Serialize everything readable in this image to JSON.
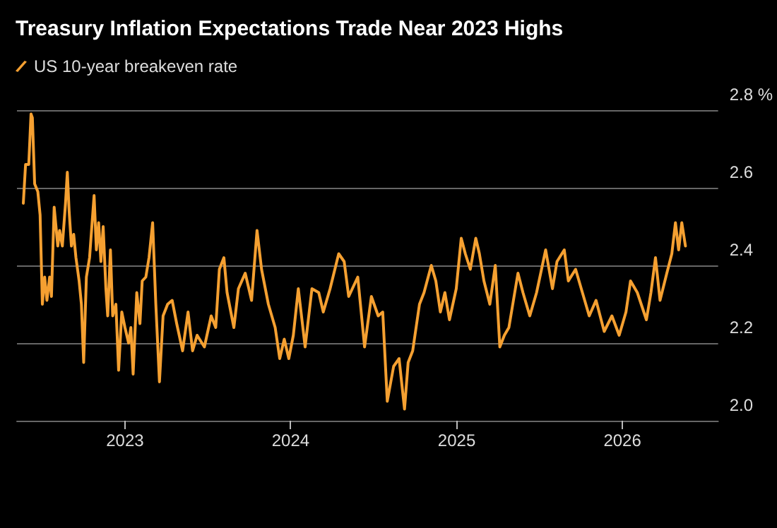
{
  "chart_data": {
    "type": "line",
    "title": "Treasury Inflation Expectations Trade Near 2023 Highs",
    "legend": "top left",
    "grid": "y",
    "line_style": "solid",
    "marker": "none",
    "xlim": [
      "2022-05-08",
      "2026-07-31"
    ],
    "xticks": [
      {
        "value": "2023-01-01",
        "label": "2023"
      },
      {
        "value": "2024-01-01",
        "label": "2024"
      },
      {
        "value": "2025-01-01",
        "label": "2025"
      },
      {
        "value": "2026-01-01",
        "label": "2026"
      }
    ],
    "ylim": [
      2.0,
      2.8
    ],
    "yticks": [
      {
        "value": 2.0,
        "label": "2.0"
      },
      2.2,
      2.4,
      2.6,
      {
        "value": 2.8,
        "label": "2.8 %"
      }
    ],
    "series": [
      {
        "name": "US 10-year breakeven rate",
        "color": "#f5a031",
        "x": [
          "2022-05-22",
          "2022-05-27",
          "2022-06-03",
          "2022-06-08",
          "2022-06-11",
          "2022-06-16",
          "2022-06-23",
          "2022-06-28",
          "2022-07-03",
          "2022-07-08",
          "2022-07-13",
          "2022-07-19",
          "2022-07-23",
          "2022-07-29",
          "2022-08-06",
          "2022-08-10",
          "2022-08-16",
          "2022-08-23",
          "2022-08-27",
          "2022-08-31",
          "2022-09-05",
          "2022-09-10",
          "2022-09-15",
          "2022-09-22",
          "2022-09-27",
          "2022-10-02",
          "2022-10-08",
          "2022-10-15",
          "2022-10-25",
          "2022-10-30",
          "2022-11-04",
          "2022-11-09",
          "2022-11-14",
          "2022-11-20",
          "2022-11-24",
          "2022-11-30",
          "2022-12-05",
          "2022-12-12",
          "2022-12-18",
          "2022-12-25",
          "2023-01-01",
          "2023-01-09",
          "2023-01-14",
          "2023-01-19",
          "2023-01-27",
          "2023-02-03",
          "2023-02-08",
          "2023-02-16",
          "2023-02-23",
          "2023-03-03",
          "2023-03-10",
          "2023-03-18",
          "2023-03-26",
          "2023-04-05",
          "2023-04-15",
          "2023-04-25",
          "2023-05-08",
          "2023-05-20",
          "2023-05-30",
          "2023-06-09",
          "2023-06-25",
          "2023-07-10",
          "2023-07-20",
          "2023-07-28",
          "2023-08-07",
          "2023-08-14",
          "2023-08-29",
          "2023-09-08",
          "2023-09-23",
          "2023-10-07",
          "2023-10-19",
          "2023-10-29",
          "2023-11-13",
          "2023-11-28",
          "2023-12-08",
          "2023-12-18",
          "2023-12-28",
          "2024-01-07",
          "2024-01-18",
          "2024-02-02",
          "2024-02-17",
          "2024-03-03",
          "2024-03-13",
          "2024-03-28",
          "2024-04-16",
          "2024-04-28",
          "2024-05-08",
          "2024-05-28",
          "2024-06-12",
          "2024-06-27",
          "2024-07-12",
          "2024-07-22",
          "2024-08-01",
          "2024-08-15",
          "2024-08-27",
          "2024-09-08",
          "2024-09-16",
          "2024-09-26",
          "2024-10-11",
          "2024-10-21",
          "2024-11-06",
          "2024-11-16",
          "2024-11-26",
          "2024-12-06",
          "2024-12-16",
          "2024-12-31",
          "2025-01-11",
          "2025-01-20",
          "2025-01-31",
          "2025-02-12",
          "2025-02-20",
          "2025-03-02",
          "2025-03-15",
          "2025-03-27",
          "2025-04-06",
          "2025-04-16",
          "2025-04-26",
          "2025-05-06",
          "2025-05-16",
          "2025-05-27",
          "2025-06-11",
          "2025-06-26",
          "2025-07-16",
          "2025-07-31",
          "2025-08-10",
          "2025-08-26",
          "2025-09-04",
          "2025-09-20",
          "2025-10-05",
          "2025-10-20",
          "2025-11-04",
          "2025-11-22",
          "2025-12-09",
          "2025-12-25",
          "2026-01-09",
          "2026-01-19",
          "2026-02-03",
          "2026-02-23",
          "2026-03-05",
          "2026-03-15",
          "2026-03-25",
          "2026-04-09",
          "2026-04-20",
          "2026-04-28",
          "2026-05-05",
          "2026-05-12",
          "2026-05-20"
        ],
        "values": [
          2.56,
          2.66,
          2.66,
          2.79,
          2.78,
          2.61,
          2.59,
          2.53,
          2.3,
          2.37,
          2.31,
          2.37,
          2.32,
          2.55,
          2.45,
          2.49,
          2.45,
          2.56,
          2.64,
          2.54,
          2.45,
          2.48,
          2.42,
          2.36,
          2.3,
          2.15,
          2.37,
          2.42,
          2.58,
          2.44,
          2.51,
          2.41,
          2.5,
          2.34,
          2.27,
          2.44,
          2.27,
          2.3,
          2.13,
          2.28,
          2.24,
          2.2,
          2.24,
          2.12,
          2.33,
          2.25,
          2.36,
          2.37,
          2.42,
          2.51,
          2.3,
          2.1,
          2.27,
          2.3,
          2.31,
          2.25,
          2.18,
          2.28,
          2.18,
          2.22,
          2.19,
          2.27,
          2.24,
          2.39,
          2.42,
          2.33,
          2.24,
          2.34,
          2.38,
          2.31,
          2.49,
          2.39,
          2.3,
          2.24,
          2.16,
          2.21,
          2.16,
          2.22,
          2.34,
          2.19,
          2.34,
          2.33,
          2.28,
          2.34,
          2.43,
          2.41,
          2.32,
          2.37,
          2.19,
          2.32,
          2.27,
          2.28,
          2.05,
          2.14,
          2.16,
          2.03,
          2.15,
          2.18,
          2.3,
          2.33,
          2.4,
          2.36,
          2.28,
          2.33,
          2.26,
          2.34,
          2.47,
          2.43,
          2.39,
          2.47,
          2.43,
          2.36,
          2.3,
          2.4,
          2.19,
          2.22,
          2.24,
          2.31,
          2.38,
          2.33,
          2.27,
          2.33,
          2.44,
          2.34,
          2.41,
          2.44,
          2.36,
          2.39,
          2.33,
          2.27,
          2.31,
          2.23,
          2.27,
          2.22,
          2.28,
          2.36,
          2.33,
          2.26,
          2.33,
          2.42,
          2.31,
          2.38,
          2.43,
          2.51,
          2.44,
          2.51,
          2.45
        ]
      }
    ]
  }
}
